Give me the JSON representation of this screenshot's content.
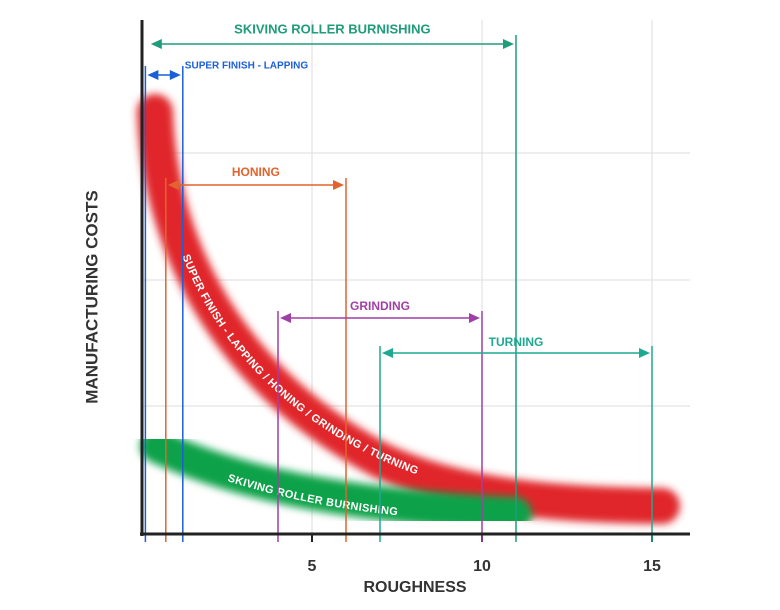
{
  "chart_data": {
    "type": "range",
    "x_label": "ROUGHNESS",
    "y_label": "MANUFACTURING COSTS",
    "xlim": [
      0,
      16
    ],
    "xticks": [
      5,
      10,
      15
    ],
    "grid": true,
    "ranges": [
      {
        "label": "SKIVING ROLLER BURNISHING",
        "color": "#1f9d7a",
        "start": 0.2,
        "end": 11
      },
      {
        "label": "SUPER FINISH - LAPPING",
        "color": "#1b5fd8",
        "start": 0.1,
        "end": 1.2
      },
      {
        "label": "HONING",
        "color": "#e2632d",
        "start": 0.7,
        "end": 6
      },
      {
        "label": "GRINDING",
        "color": "#a23fa6",
        "start": 4,
        "end": 10
      },
      {
        "label": "TURNING",
        "color": "#1ea891",
        "start": 7,
        "end": 15
      }
    ],
    "curves": [
      {
        "label": "SUPER FINISH - LAPPING  /  HONING  /  GRINDING  /  TURNING",
        "color": "#e0282b"
      },
      {
        "label": "SKIVING ROLLER BURNISHING",
        "color": "#0fa24a"
      }
    ]
  }
}
